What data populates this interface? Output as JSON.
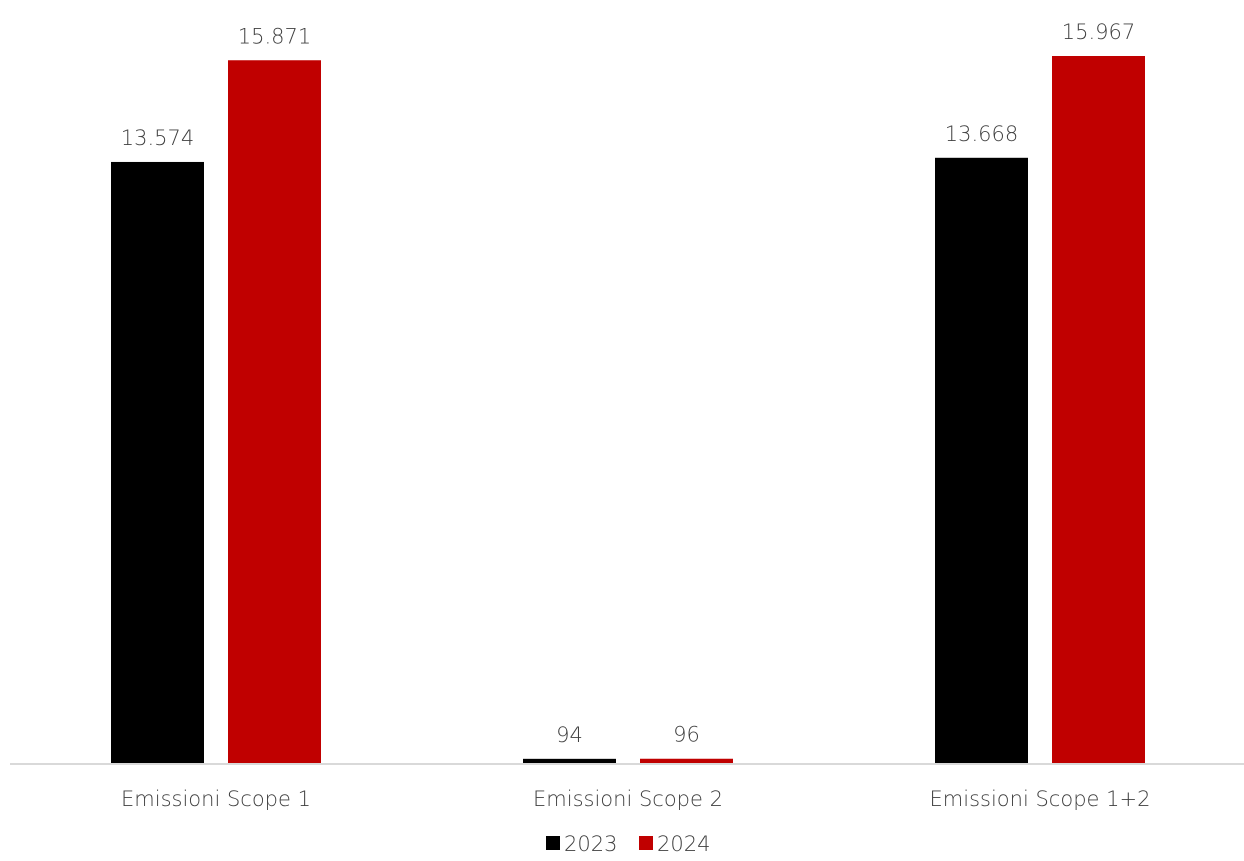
{
  "chart_data": {
    "type": "bar",
    "title": "",
    "xlabel": "",
    "ylabel": "",
    "categories": [
      "Emissioni Scope 1",
      "Emissioni Scope 2",
      "Emissioni Scope 1+2"
    ],
    "series": [
      {
        "name": "2023",
        "color": "#000000",
        "values": [
          13574,
          94,
          13668
        ],
        "labels": [
          "13.574",
          "94",
          "13.668"
        ]
      },
      {
        "name": "2024",
        "color": "#c00000",
        "values": [
          15871,
          96,
          15967
        ],
        "labels": [
          "15.871",
          "96",
          "15.967"
        ]
      }
    ],
    "ylim": [
      0,
      16000
    ],
    "grid": false,
    "legend": "bottom-center",
    "axis_color": "#d9d9d9",
    "text_color": "#404040"
  }
}
